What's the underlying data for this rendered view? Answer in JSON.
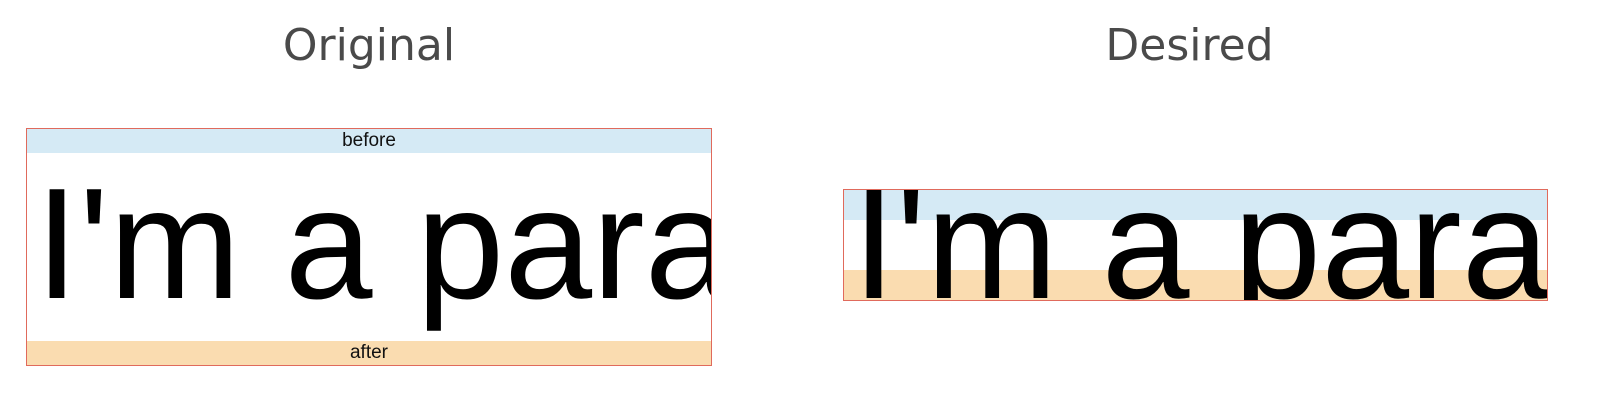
{
  "panels": {
    "original": {
      "title": "Original",
      "before_label": "before",
      "after_label": "after",
      "paragraph_text": "I'm a paragraph"
    },
    "desired": {
      "title": "Desired",
      "paragraph_text": "I'm a paragraph"
    }
  },
  "colors": {
    "frame_border": "#e06a5c",
    "before_band": "#d5eaf5",
    "after_band": "#fadcb0",
    "title_text": "#4a4a4a"
  }
}
